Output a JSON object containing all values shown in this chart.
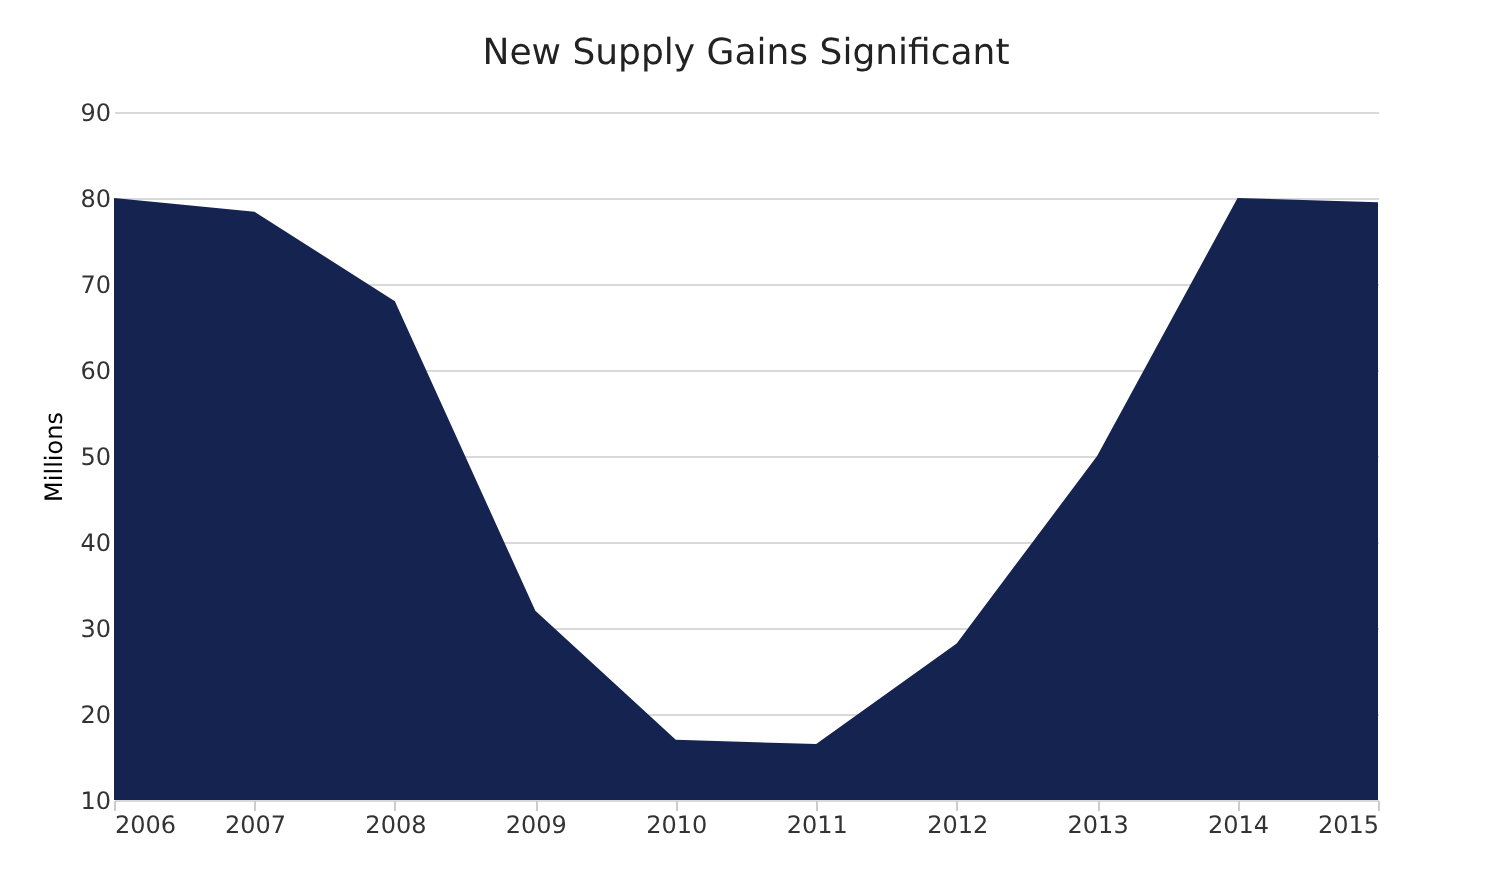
{
  "chart_data": {
    "type": "area",
    "title": "New Supply Gains Significant",
    "ylabel": "Millions",
    "x": [
      2006,
      2007,
      2008,
      2009,
      2010,
      2011,
      2012,
      2013,
      2014,
      2015
    ],
    "series": [
      {
        "color": "#14234f",
        "values": [
          80,
          78.4,
          68,
          32,
          17,
          16.5,
          28.2,
          50,
          80,
          79.5
        ]
      }
    ],
    "xlim": [
      2006,
      2015
    ],
    "xticks": [
      2006,
      2007,
      2008,
      2009,
      2010,
      2011,
      2012,
      2013,
      2014,
      2015
    ],
    "ylim": [
      10,
      90
    ],
    "yticks": [
      10,
      20,
      30,
      40,
      50,
      60,
      70,
      80,
      90
    ],
    "grid": "y"
  }
}
